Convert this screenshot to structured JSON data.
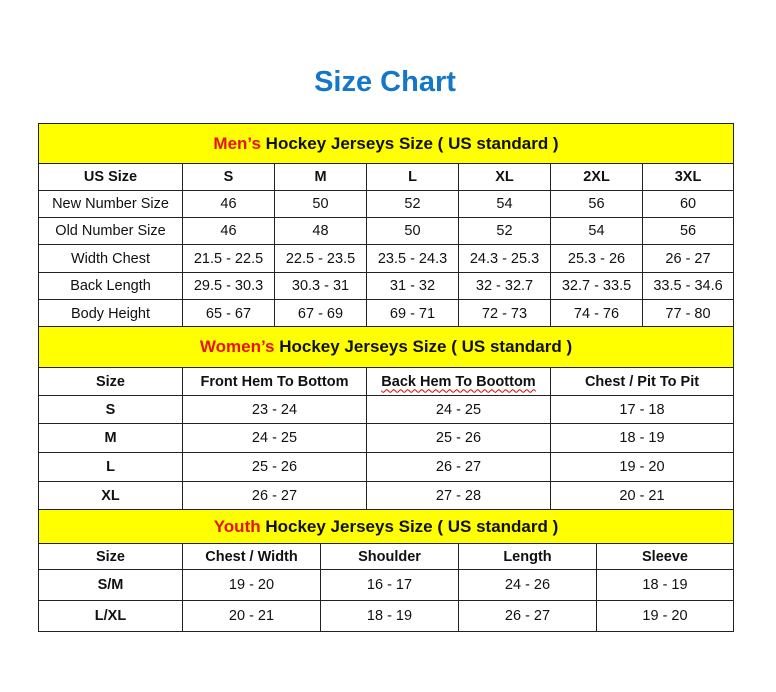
{
  "title": "Size Chart",
  "colors": {
    "title": "#1477c8",
    "header_bg": "#ffff00",
    "highlight": "#e8120c"
  },
  "men": {
    "header_highlight": "Men’s",
    "header_rest": " Hockey Jerseys Size ( US standard )",
    "columns": [
      "US Size",
      "S",
      "M",
      "L",
      "XL",
      "2XL",
      "3XL"
    ],
    "rows": [
      [
        "New Number Size",
        "46",
        "50",
        "52",
        "54",
        "56",
        "60"
      ],
      [
        "Old Number Size",
        "46",
        "48",
        "50",
        "52",
        "54",
        "56"
      ],
      [
        "Width Chest",
        "21.5 - 22.5",
        "22.5 - 23.5",
        "23.5 - 24.3",
        "24.3 - 25.3",
        "25.3 - 26",
        "26 - 27"
      ],
      [
        "Back Length",
        "29.5 - 30.3",
        "30.3 - 31",
        "31 - 32",
        "32 - 32.7",
        "32.7 - 33.5",
        "33.5 - 34.6"
      ],
      [
        "Body Height",
        "65 - 67",
        "67 - 69",
        "69 - 71",
        "72 - 73",
        "74 - 76",
        "77 - 80"
      ]
    ]
  },
  "women": {
    "header_highlight": "Women’s",
    "header_rest": " Hockey Jerseys Size ( US standard )",
    "columns": [
      "Size",
      "Front Hem To Bottom",
      "Back Hem To Boottom",
      "Chest / Pit To Pit"
    ],
    "rows": [
      [
        "S",
        "23 - 24",
        "24 - 25",
        "17 - 18"
      ],
      [
        "M",
        "24 - 25",
        "25 - 26",
        "18 - 19"
      ],
      [
        "L",
        "25 - 26",
        "26 - 27",
        "19 - 20"
      ],
      [
        "XL",
        "26 - 27",
        "27 - 28",
        "20 - 21"
      ]
    ]
  },
  "youth": {
    "header_highlight": "Youth",
    "header_rest": " Hockey Jerseys Size ( US standard )",
    "columns": [
      "Size",
      "Chest / Width",
      "Shoulder",
      "Length",
      "Sleeve"
    ],
    "rows": [
      [
        "S/M",
        "19 - 20",
        "16 - 17",
        "24 - 26",
        "18 - 19"
      ],
      [
        "L/XL",
        "20 - 21",
        "18 - 19",
        "26 - 27",
        "19 - 20"
      ]
    ]
  }
}
